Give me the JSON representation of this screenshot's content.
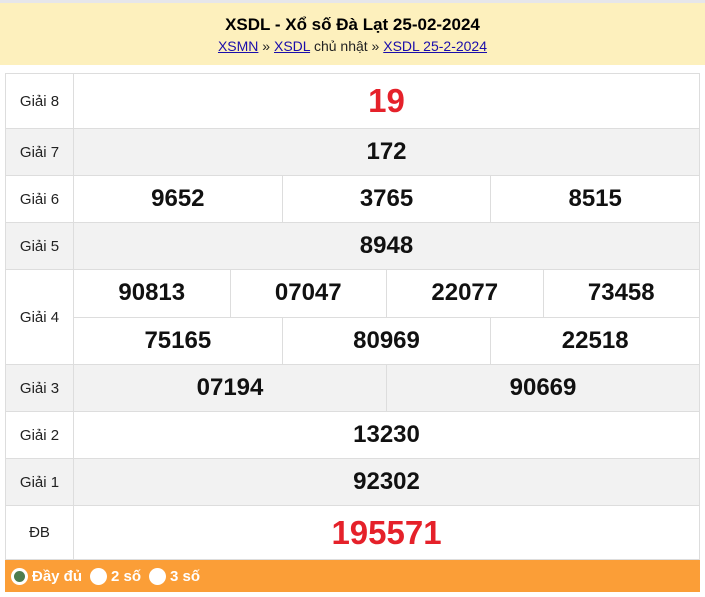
{
  "header": {
    "title": "XSDL - Xổ số Đà Lạt 25-02-2024",
    "crumb1": "XSMN",
    "sep1": " » ",
    "crumb2": "XSDL",
    "mid": " chủ nhật » ",
    "crumb3": "XSDL 25-2-2024"
  },
  "prizes": [
    {
      "label": "Giải 8",
      "rows": [
        [
          "19"
        ]
      ]
    },
    {
      "label": "Giải 7",
      "rows": [
        [
          "172"
        ]
      ]
    },
    {
      "label": "Giải 6",
      "rows": [
        [
          "9652",
          "3765",
          "8515"
        ]
      ]
    },
    {
      "label": "Giải 5",
      "rows": [
        [
          "8948"
        ]
      ]
    },
    {
      "label": "Giải 4",
      "rows": [
        [
          "90813",
          "07047",
          "22077",
          "73458"
        ],
        [
          "75165",
          "80969",
          "22518"
        ]
      ]
    },
    {
      "label": "Giải 3",
      "rows": [
        [
          "07194",
          "90669"
        ]
      ]
    },
    {
      "label": "Giải 2",
      "rows": [
        [
          "13230"
        ]
      ]
    },
    {
      "label": "Giải 1",
      "rows": [
        [
          "92302"
        ]
      ]
    },
    {
      "label": "ĐB",
      "rows": [
        [
          "195571"
        ]
      ]
    }
  ],
  "footer": {
    "options": [
      {
        "label": "Đầy đủ",
        "selected": true
      },
      {
        "label": "2 số",
        "selected": false
      },
      {
        "label": "3 số",
        "selected": false
      }
    ]
  },
  "colors": {
    "header_bg": "#fdf0bd",
    "footer_bg": "#fb9e37",
    "highlight": "#e5212a",
    "link": "#1a0dab"
  }
}
